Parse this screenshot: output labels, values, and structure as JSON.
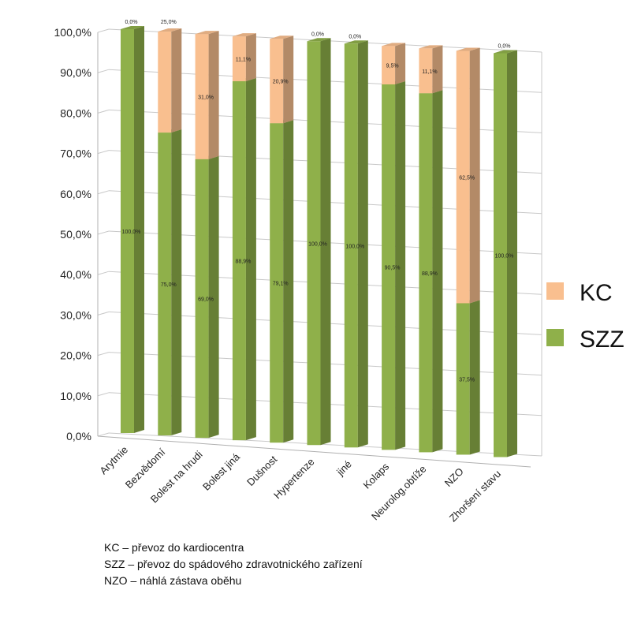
{
  "chart_data": {
    "type": "bar",
    "stacked": true,
    "three_d": true,
    "categories": [
      "Arytmie",
      "Bezvědomí",
      "Bolest na hrudi",
      "Bolest jiná",
      "Dušnost",
      "Hypertenze",
      "jiné",
      "Kolaps",
      "Neurolog.obtíže",
      "NZO",
      "Zhoršení stavu"
    ],
    "series": [
      {
        "name": "SZZ",
        "color": "#8FB04A",
        "values": [
          100.0,
          75.0,
          69.0,
          88.9,
          79.1,
          100.0,
          100.0,
          90.5,
          88.9,
          37.5,
          100.0
        ],
        "labels": [
          "100,0%",
          "75,0%",
          "69,0%",
          "88,9%",
          "79,1%",
          "100,0%",
          "100,0%",
          "90,5%",
          "88,9%",
          "37,5%",
          "100,0%"
        ]
      },
      {
        "name": "KC",
        "color": "#F9BF8F",
        "values": [
          0.0,
          25.0,
          31.0,
          11.1,
          20.9,
          0.0,
          0.0,
          9.5,
          11.1,
          62.5,
          0.0
        ],
        "labels": [
          "0,0%",
          "25,0%",
          "31,0%",
          "11,1%",
          "20,9%",
          "0,0%",
          "0,0%",
          "9,5%",
          "11,1%",
          "62,5%",
          "0,0%"
        ]
      }
    ],
    "ylim": [
      0,
      100
    ],
    "y_ticks": [
      0,
      10,
      20,
      30,
      40,
      50,
      60,
      70,
      80,
      90,
      100
    ],
    "y_tick_labels": [
      "0,0%",
      "10,0%",
      "20,0%",
      "30,0%",
      "40,0%",
      "50,0%",
      "60,0%",
      "70,0%",
      "80,0%",
      "90,0%",
      "100,0%"
    ],
    "grid": true,
    "legend": {
      "position": "right",
      "entries": [
        "KC",
        "SZZ"
      ]
    }
  },
  "footnotes": [
    "KC – převoz do kardiocentra",
    "SZZ – převoz do spádového zdravotnického zařízení",
    "NZO – náhlá zástava oběhu"
  ]
}
